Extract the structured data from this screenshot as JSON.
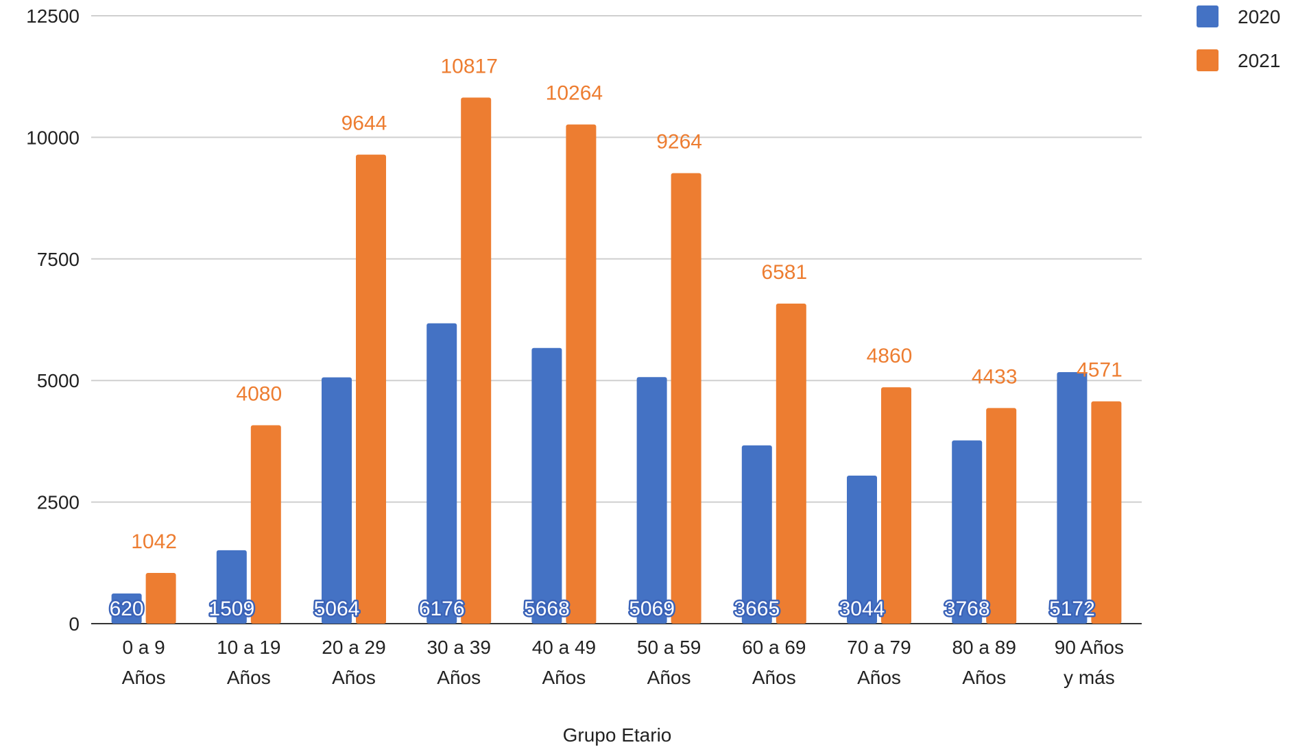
{
  "chart_data": {
    "type": "bar",
    "title": "",
    "xlabel": "Grupo Etario",
    "ylabel": "",
    "ylim": [
      0,
      12500
    ],
    "yticks": [
      0,
      2500,
      5000,
      7500,
      10000,
      12500
    ],
    "grid": true,
    "legend_position": "top-right",
    "categories": [
      [
        "0 a 9",
        "Años"
      ],
      [
        "10 a 19",
        "Años"
      ],
      [
        "20 a 29",
        "Años"
      ],
      [
        "30 a 39",
        "Años"
      ],
      [
        "40 a 49",
        "Años"
      ],
      [
        "50 a 59",
        "Años"
      ],
      [
        "60 a 69",
        "Años"
      ],
      [
        "70 a 79",
        "Años"
      ],
      [
        "80 a 89",
        "Años"
      ],
      [
        "90 Años",
        "y más"
      ]
    ],
    "series": [
      {
        "name": "2020",
        "color": "#4472c4",
        "values": [
          620,
          1509,
          5064,
          6176,
          5668,
          5069,
          3665,
          3044,
          3768,
          5172
        ],
        "labels": [
          "620",
          "1509",
          "5064",
          "6176",
          "5668",
          "5069",
          "3665",
          "3044",
          "3768",
          "5172"
        ]
      },
      {
        "name": "2021",
        "color": "#ed7d31",
        "values": [
          1042,
          4080,
          9644,
          10817,
          10264,
          9264,
          6581,
          4860,
          4433,
          4571
        ],
        "labels": [
          "1042",
          "4080",
          "9644",
          "10817",
          "10264",
          "9264",
          "6581",
          "4860",
          "4433",
          "4571"
        ]
      }
    ]
  }
}
